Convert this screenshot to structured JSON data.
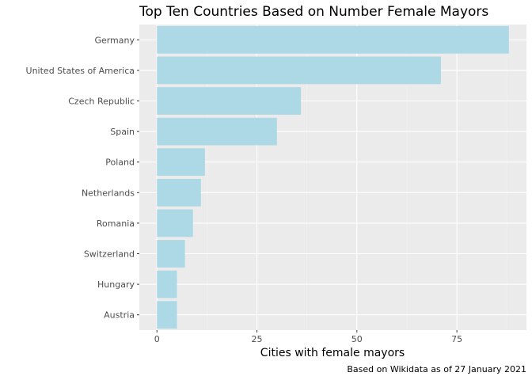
{
  "chart_data": {
    "type": "bar",
    "orientation": "horizontal",
    "title": "Top Ten Countries Based on Number Female Mayors",
    "xlabel": "Cities with female mayors",
    "ylabel": "",
    "caption": "Based on Wikidata as of 27 January 2021",
    "categories": [
      "Germany",
      "United States of America",
      "Czech Republic",
      "Spain",
      "Poland",
      "Netherlands",
      "Romania",
      "Switzerland",
      "Hungary",
      "Austria"
    ],
    "values": [
      88,
      71,
      36,
      30,
      12,
      11,
      9,
      7,
      5,
      5
    ],
    "xlim": [
      -4.4,
      92.4
    ],
    "x_ticks": [
      0,
      25,
      50,
      75
    ],
    "grid": true,
    "legend": "none",
    "colors": {
      "bar": "#add8e6",
      "panel_background": "#ebebeb",
      "grid_major": "#ffffff",
      "grid_minor": "#f2f2f2",
      "tick_label": "#4d4d4d"
    }
  }
}
